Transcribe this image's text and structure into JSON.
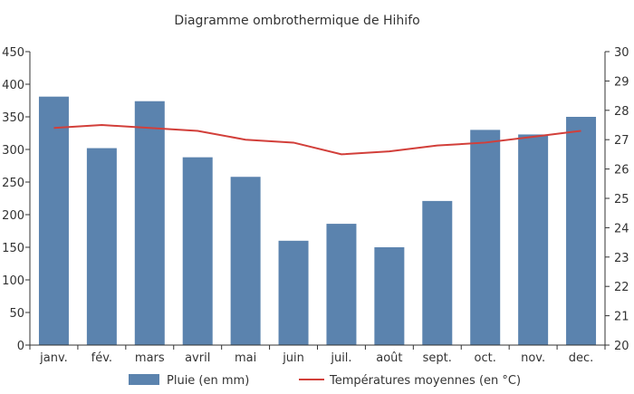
{
  "chart_data": {
    "type": "bar",
    "title": "Diagramme ombrothermique de Hihifo",
    "categories": [
      "janv.",
      "fév.",
      "mars",
      "avril",
      "mai",
      "juin",
      "juil.",
      "août",
      "sept.",
      "oct.",
      "nov.",
      "dec."
    ],
    "series": [
      {
        "name": "Pluie (en mm)",
        "type": "bar",
        "axis": "left",
        "color": "#5b83ae",
        "values": [
          381,
          302,
          374,
          288,
          258,
          160,
          186,
          150,
          221,
          330,
          323,
          350
        ]
      },
      {
        "name": "Températures moyennes (en °C)",
        "type": "line",
        "axis": "right",
        "color": "#d23f3a",
        "values": [
          27.4,
          27.5,
          27.4,
          27.3,
          27.0,
          26.9,
          26.5,
          26.6,
          26.8,
          26.9,
          27.1,
          27.3
        ]
      }
    ],
    "y_left": {
      "min": 0,
      "max": 450,
      "step": 50
    },
    "y_right": {
      "min": 20,
      "max": 30,
      "step": 1
    },
    "legend_position": "bottom",
    "grid": false
  }
}
